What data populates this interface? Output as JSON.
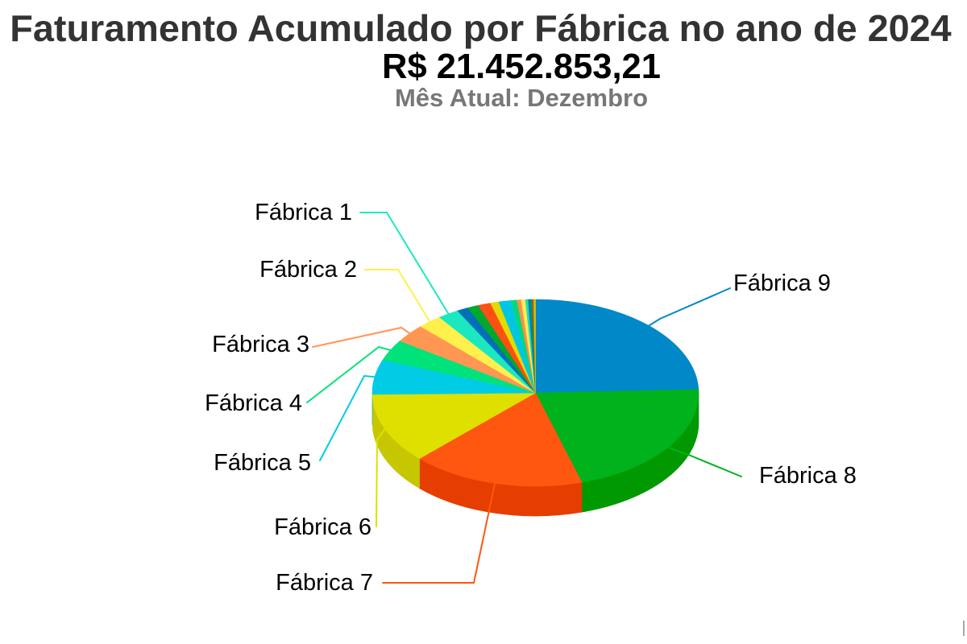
{
  "chart_data": {
    "type": "pie",
    "3d": true,
    "title": "Faturamento Acumulado por Fábrica no ano de 2024",
    "subtitle": [
      "R$ 21.452.853,21",
      "Mês Atual: Dezembro"
    ],
    "categories": [
      "Fábrica 9",
      "Fábrica 8",
      "Fábrica 7",
      "Fábrica 6",
      "Fábrica 5",
      "Fábrica 4",
      "Fábrica 3",
      "Fábrica 2",
      "Fábrica 1",
      "",
      "",
      "",
      "",
      "",
      "",
      "",
      "",
      "",
      "",
      "",
      "",
      ""
    ],
    "values": [
      5244000,
      4499000,
      3683000,
      2604000,
      1287000,
      787000,
      685000,
      518000,
      447000,
      238000,
      238000,
      268000,
      179000,
      268000,
      119000,
      89000,
      89000,
      60000,
      48000,
      42000,
      30000,
      30000
    ],
    "colors": [
      "#0088C8",
      "#00B21B",
      "#FF570F",
      "#DFE000",
      "#00CCE6",
      "#00E27A",
      "#FF9654",
      "#FFF04C",
      "#1CE8C0",
      "#0070BA",
      "#00A82B",
      "#FF4F14",
      "#E2DA00",
      "#00C6E2",
      "#00D977",
      "#FF8D4A",
      "#FFEC52",
      "#1CDEB8",
      "#0078C2",
      "#00A032",
      "#EE4A12",
      "#D6CE00"
    ],
    "legend": false
  }
}
